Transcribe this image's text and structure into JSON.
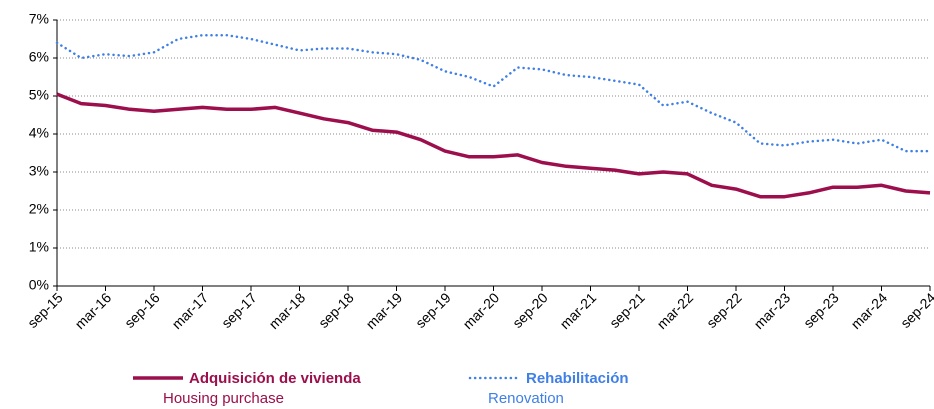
{
  "chart_data": {
    "type": "line",
    "categories": [
      "sep-15",
      null,
      "mar-16",
      null,
      "sep-16",
      null,
      "mar-17",
      null,
      "sep-17",
      null,
      "mar-18",
      null,
      "sep-18",
      null,
      "mar-19",
      null,
      "sep-19",
      null,
      "mar-20",
      null,
      "sep-20",
      null,
      "mar-21",
      null,
      "sep-21",
      null,
      "mar-22",
      null,
      "sep-22",
      null,
      "mar-23",
      null,
      "sep-23",
      null,
      "mar-24",
      null,
      "sep-24"
    ],
    "series": [
      {
        "name": "Adquisición de vivienda",
        "legend_subtitle": "Housing purchase",
        "color": "#9c0f4c",
        "style": "solid",
        "values": [
          5.05,
          4.8,
          4.75,
          4.65,
          4.6,
          4.65,
          4.7,
          4.65,
          4.65,
          4.7,
          4.55,
          4.4,
          4.3,
          4.1,
          4.05,
          3.85,
          3.55,
          3.4,
          3.4,
          3.45,
          3.25,
          3.15,
          3.1,
          3.05,
          2.95,
          3.0,
          2.95,
          2.65,
          2.55,
          2.35,
          2.35,
          2.45,
          2.6,
          2.6,
          2.65,
          2.5,
          2.45
        ]
      },
      {
        "name": "Rehabilitación",
        "legend_subtitle": "Renovation",
        "color": "#3f7fe6",
        "style": "dotted",
        "values": [
          6.4,
          6.0,
          6.1,
          6.05,
          6.15,
          6.5,
          6.6,
          6.6,
          6.5,
          6.35,
          6.2,
          6.25,
          6.25,
          6.15,
          6.1,
          5.95,
          5.65,
          5.5,
          5.25,
          5.75,
          5.7,
          5.55,
          5.5,
          5.4,
          5.3,
          4.75,
          4.85,
          4.55,
          4.3,
          3.75,
          3.7,
          3.8,
          3.85,
          3.75,
          3.85,
          3.55,
          3.55
        ]
      }
    ],
    "ylim": [
      0,
      7
    ],
    "yticks": [
      {
        "value": 0,
        "label": "0%"
      },
      {
        "value": 1,
        "label": "1%"
      },
      {
        "value": 2,
        "label": "2%"
      },
      {
        "value": 3,
        "label": "3%"
      },
      {
        "value": 4,
        "label": "4%"
      },
      {
        "value": 5,
        "label": "5%"
      },
      {
        "value": 6,
        "label": "6%"
      },
      {
        "value": 7,
        "label": "7%"
      }
    ],
    "grid": true
  }
}
